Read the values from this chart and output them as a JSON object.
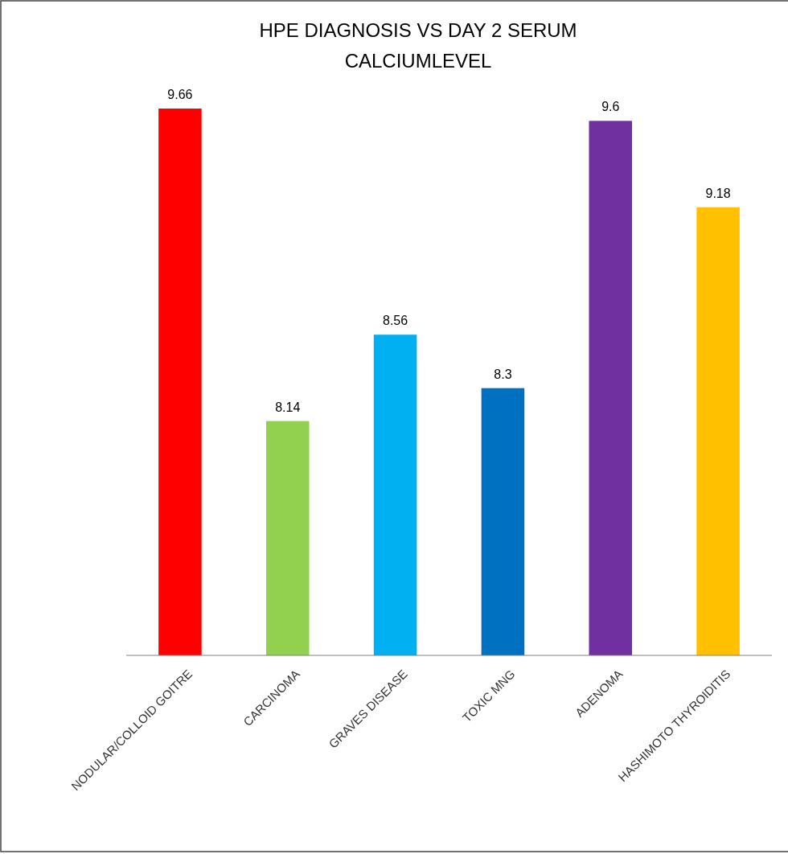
{
  "chart_data": {
    "type": "bar",
    "title": "HPE DIAGNOSIS VS DAY 2 SERUM CALCIUMLEVEL",
    "categories": [
      "NODULAR/COLLOID GOITRE",
      "CARCINOMA",
      "GRAVES DISEASE",
      "TOXIC MNG",
      "ADENOMA",
      "HASHIMOTO THYROIDITIS"
    ],
    "values": [
      9.66,
      8.14,
      8.56,
      8.3,
      9.6,
      9.18
    ],
    "colors": [
      "#ff0000",
      "#92d050",
      "#00b0f0",
      "#0070c0",
      "#7030a0",
      "#ffc000"
    ],
    "ylim": [
      7,
      9.66
    ],
    "tick_labels": "x",
    "data_labels": true
  }
}
